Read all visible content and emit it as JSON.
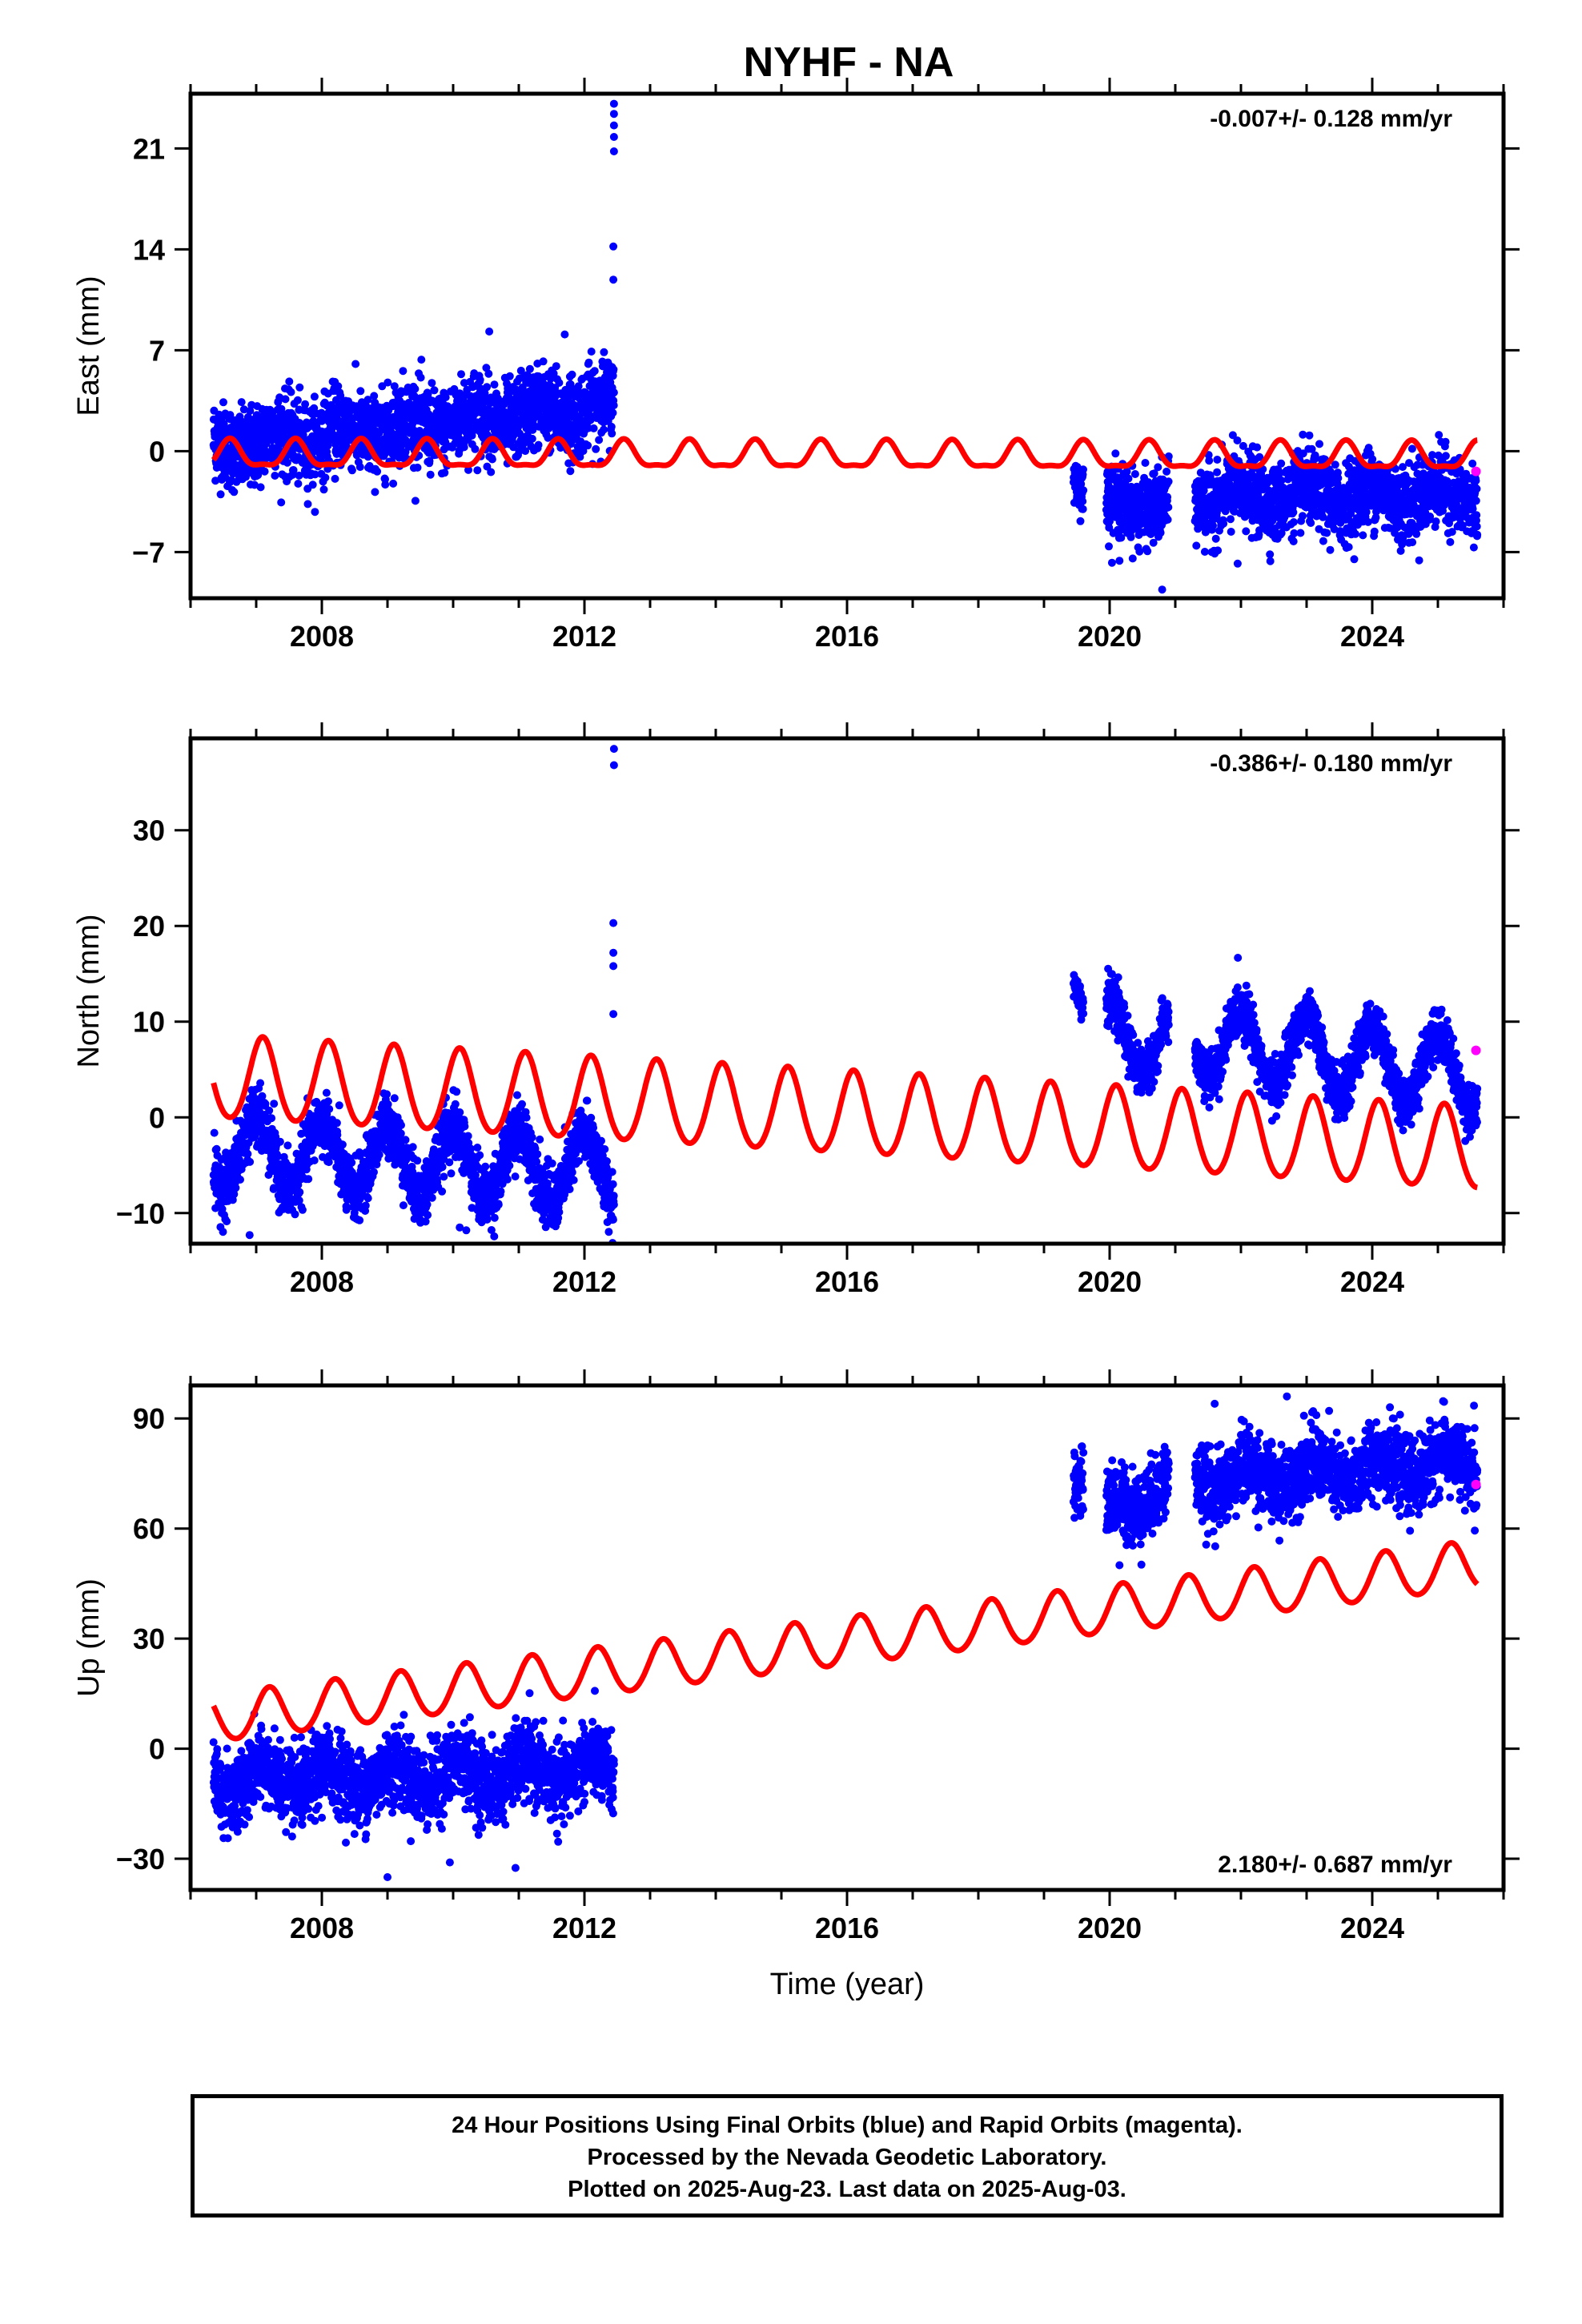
{
  "title": "NYHF - NA",
  "footer": {
    "line1": "24 Hour Positions Using Final Orbits (blue) and Rapid Orbits (magenta).",
    "line2": "Processed by the Nevada Geodetic Laboratory.",
    "line3": "Plotted on 2025-Aug-23. Last data on 2025-Aug-03."
  },
  "colors": {
    "final_orbits": "#0000ff",
    "rapid_orbits": "#ff00ff",
    "model": "#ff0000",
    "axes": "#000000"
  },
  "chart_data": [
    {
      "type": "scatter",
      "component": "east",
      "ylabel": "East (mm)",
      "xlabel": "",
      "xlim": [
        2006.0,
        2026.0
      ],
      "ylim": [
        -10.2,
        24.8
      ],
      "xticks": [
        2008,
        2012,
        2016,
        2020,
        2024
      ],
      "yticks": [
        -7,
        0,
        7,
        14,
        21
      ],
      "ytick_labels": [
        "−7",
        "0",
        "7",
        "14",
        "21"
      ],
      "velocity_text": "-0.007+/- 0.128 mm/yr",
      "velocity_position": "top-right",
      "segments": [
        {
          "x_start": 2006.35,
          "x_end": 2012.45,
          "mean_start": 0.3,
          "mean_end": 3.2,
          "spread": 1.4,
          "amplitude": 0.6,
          "phase": 0.3
        },
        {
          "x_start": 2019.45,
          "x_end": 2019.6,
          "mean_start": -1.5,
          "mean_end": -2.8,
          "spread": 0.8,
          "amplitude": 0.2,
          "phase": 0.0
        },
        {
          "x_start": 2019.95,
          "x_end": 2020.9,
          "mean_start": -3.6,
          "mean_end": -3.8,
          "spread": 1.2,
          "amplitude": 0.4,
          "phase": 0.0
        },
        {
          "x_start": 2021.3,
          "x_end": 2025.6,
          "mean_start": -3.2,
          "mean_end": -3.0,
          "spread": 1.3,
          "amplitude": 0.6,
          "phase": 0.0
        }
      ],
      "outliers": [
        {
          "x": 2012.45,
          "y": 24.1
        },
        {
          "x": 2012.45,
          "y": 23.4
        },
        {
          "x": 2012.45,
          "y": 22.6
        },
        {
          "x": 2012.45,
          "y": 21.8
        },
        {
          "x": 2012.45,
          "y": 20.8
        },
        {
          "x": 2012.44,
          "y": 14.2
        },
        {
          "x": 2012.44,
          "y": 11.9
        },
        {
          "x": 2010.55,
          "y": 8.3
        },
        {
          "x": 2011.7,
          "y": 8.1
        },
        {
          "x": 2020.8,
          "y": -9.6
        },
        {
          "x": 2020.15,
          "y": -7.6
        },
        {
          "x": 2021.95,
          "y": -7.8
        }
      ],
      "rapid_points": [
        {
          "x": 2025.58,
          "y": -1.4
        }
      ],
      "model": {
        "offset": -0.3,
        "rate": -0.007,
        "annual_amplitude": 0.9,
        "annual_phase": 0.6,
        "semiannual_amplitude": 0.3,
        "x_start": 2006.35,
        "x_end": 2025.6
      }
    },
    {
      "type": "scatter",
      "component": "north",
      "ylabel": "North (mm)",
      "xlabel": "",
      "xlim": [
        2006.0,
        2026.0
      ],
      "ylim": [
        -13.2,
        39.6
      ],
      "xticks": [
        2008,
        2012,
        2016,
        2020,
        2024
      ],
      "yticks": [
        -10,
        0,
        10,
        20,
        30
      ],
      "ytick_labels": [
        "−10",
        "0",
        "10",
        "20",
        "30"
      ],
      "velocity_text": "-0.386+/- 0.180 mm/yr",
      "velocity_position": "top-right",
      "segments": [
        {
          "x_start": 2006.35,
          "x_end": 2012.45,
          "mean_start": -3.5,
          "mean_end": -5.5,
          "spread": 1.6,
          "amplitude": 3.6,
          "phase": 0.0
        },
        {
          "x_start": 2019.45,
          "x_end": 2019.6,
          "mean_start": 14.5,
          "mean_end": 12.0,
          "spread": 0.9,
          "amplitude": 0.3,
          "phase": 0.0
        },
        {
          "x_start": 2019.95,
          "x_end": 2020.9,
          "mean_start": 8.5,
          "mean_end": 8.0,
          "spread": 1.2,
          "amplitude": 3.5,
          "phase": 0.0
        },
        {
          "x_start": 2021.3,
          "x_end": 2025.6,
          "mean_start": 8.0,
          "mean_end": 4.5,
          "spread": 1.3,
          "amplitude": 3.8,
          "phase": 0.0
        }
      ],
      "outliers": [
        {
          "x": 2012.45,
          "y": 38.5
        },
        {
          "x": 2012.45,
          "y": 36.8
        },
        {
          "x": 2012.44,
          "y": 20.3
        },
        {
          "x": 2012.44,
          "y": 17.2
        },
        {
          "x": 2012.44,
          "y": 15.8
        },
        {
          "x": 2012.44,
          "y": 10.8
        },
        {
          "x": 2006.9,
          "y": -12.3
        },
        {
          "x": 2010.1,
          "y": -11.5
        },
        {
          "x": 2010.2,
          "y": -11.8
        }
      ],
      "rapid_points": [
        {
          "x": 2025.58,
          "y": 7.0
        }
      ],
      "model": {
        "offset": 4.0,
        "rate": -0.386,
        "annual_amplitude": 4.3,
        "annual_phase": 0.1,
        "semiannual_amplitude": 0.4,
        "x_start": 2006.35,
        "x_end": 2025.6
      }
    },
    {
      "type": "scatter",
      "component": "up",
      "ylabel": "Up (mm)",
      "xlabel": "Time (year)",
      "xlim": [
        2006.0,
        2026.0
      ],
      "ylim": [
        -38.5,
        99.0
      ],
      "xticks": [
        2008,
        2012,
        2016,
        2020,
        2024
      ],
      "yticks": [
        -30,
        0,
        30,
        60,
        90
      ],
      "ytick_labels": [
        "−30",
        "0",
        "30",
        "60",
        "90"
      ],
      "velocity_text": "2.180+/- 0.687 mm/yr",
      "velocity_position": "bottom-right",
      "segments": [
        {
          "x_start": 2006.35,
          "x_end": 2012.45,
          "mean_start": -9.0,
          "mean_end": -6.0,
          "spread": 5.2,
          "amplitude": 3.5,
          "phase": 0.1
        },
        {
          "x_start": 2019.45,
          "x_end": 2019.6,
          "mean_start": 72.0,
          "mean_end": 74.0,
          "spread": 4.0,
          "amplitude": 1.0,
          "phase": 0.0
        },
        {
          "x_start": 2019.95,
          "x_end": 2020.9,
          "mean_start": 64.0,
          "mean_end": 72.0,
          "spread": 5.0,
          "amplitude": 3.0,
          "phase": 0.0
        },
        {
          "x_start": 2021.3,
          "x_end": 2025.6,
          "mean_start": 73.0,
          "mean_end": 78.0,
          "spread": 5.0,
          "amplitude": 3.5,
          "phase": 0.1
        }
      ],
      "outliers": [
        {
          "x": 2009.0,
          "y": -35.0
        },
        {
          "x": 2010.95,
          "y": -32.5
        },
        {
          "x": 2009.95,
          "y": -31.0
        },
        {
          "x": 2022.7,
          "y": 96.0
        },
        {
          "x": 2021.6,
          "y": 94.0
        },
        {
          "x": 2025.55,
          "y": 93.5
        },
        {
          "x": 2020.15,
          "y": 50.0
        },
        {
          "x": 2023.1,
          "y": 92.0
        }
      ],
      "rapid_points": [
        {
          "x": 2025.58,
          "y": 72.0
        }
      ],
      "model": {
        "offset": 8.0,
        "rate": 2.18,
        "annual_amplitude": 6.5,
        "annual_phase": 0.2,
        "semiannual_amplitude": 0.5,
        "x_start": 2006.35,
        "x_end": 2025.6
      }
    }
  ]
}
